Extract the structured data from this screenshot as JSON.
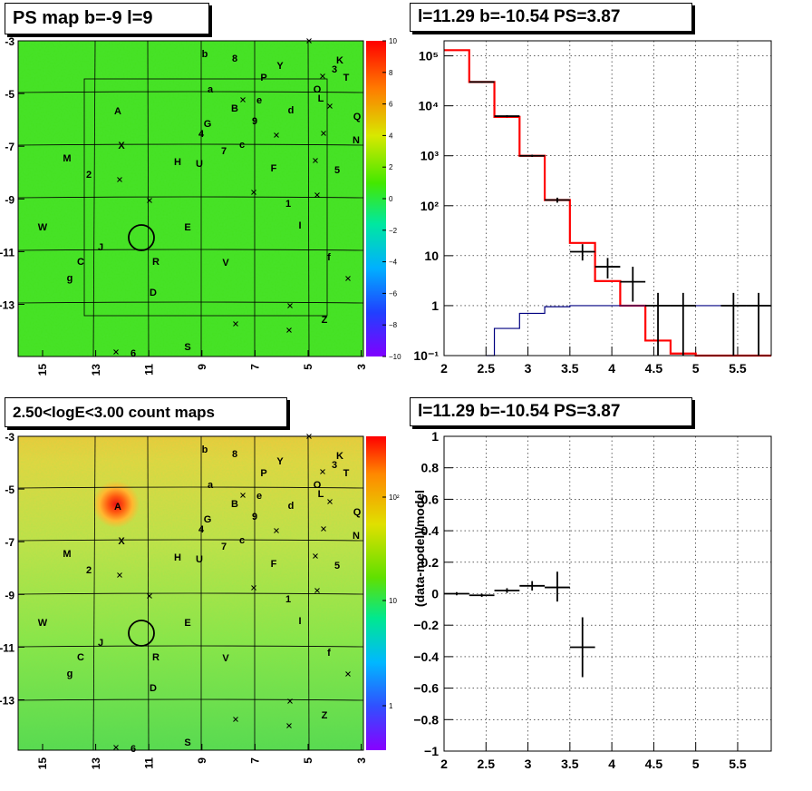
{
  "panels": {
    "top_left_title": "PS map b=-9 l=9",
    "top_right_title": "l=11.29 b=-10.54 PS=3.87",
    "bottom_left_title": "2.50<logE<3.00 count maps",
    "bottom_right_title": "l=11.29 b=-10.54 PS=3.87"
  },
  "maps": {
    "y_ticks": [
      "-3",
      "-5",
      "-7",
      "-9",
      "-11",
      "-13"
    ],
    "x_ticks": [
      "15",
      "13",
      "11",
      "9",
      "7",
      "5",
      "3"
    ],
    "ps_colorbar_ticks": [
      "10",
      "8",
      "6",
      "4",
      "2",
      "0",
      "−2",
      "−4",
      "−6",
      "−8",
      "−10"
    ],
    "count_colorbar_ticks": [
      "10²",
      "10",
      "1"
    ],
    "source_labels": [
      "b",
      "8",
      "Y",
      "K",
      "3",
      "T",
      "P",
      "O",
      "L",
      "a",
      "e",
      "B",
      "d",
      "A",
      "Q",
      "G",
      "9",
      "4",
      "N",
      "c",
      "7",
      "X",
      "M",
      "H",
      "U",
      "F",
      "5",
      "2",
      "1",
      "W",
      "E",
      "I",
      "J",
      "C",
      "R",
      "V",
      "f",
      "g",
      "D",
      "Z",
      "6",
      "S"
    ]
  },
  "chart_data": [
    {
      "type": "line",
      "panel": "top-right",
      "title": "l=11.29 b=-10.54 PS=3.87",
      "xlim": [
        2,
        5.9
      ],
      "ylim": [
        0.1,
        200000
      ],
      "y_scale": "log",
      "grid": true,
      "x_ticks": [
        "2",
        "2.5",
        "3",
        "3.5",
        "4",
        "4.5",
        "5",
        "5.5"
      ],
      "y_ticks": [
        "10⁻¹",
        "1",
        "10",
        "10²",
        "10³",
        "10⁴",
        "10⁵"
      ],
      "series": [
        {
          "color": "#ff0000",
          "style": "histogram",
          "bin_edges": [
            2.0,
            2.3,
            2.6,
            2.9,
            3.2,
            3.5,
            3.8,
            4.1,
            4.4,
            4.7,
            5.0,
            5.3,
            5.6,
            5.9
          ],
          "values": [
            130000,
            30000,
            6000,
            1000,
            130,
            18,
            3.1,
            1.0,
            0.2,
            0.11,
            0.1,
            0.1,
            0.1
          ]
        },
        {
          "color": "#000080",
          "style": "histogram",
          "bin_edges": [
            2.5,
            2.6,
            2.9,
            3.2,
            3.5,
            3.8,
            4.1,
            4.4,
            4.7,
            5.0,
            5.3,
            5.6,
            5.9
          ],
          "values": [
            0.1,
            0.35,
            0.7,
            0.95,
            1.0,
            1.0,
            1.0,
            1.0,
            1.0,
            1.0,
            1.0,
            1.0
          ]
        },
        {
          "color": "#000000",
          "style": "errorbars",
          "points": [
            {
              "x": 2.45,
              "y": 30000,
              "xerr": 0.15,
              "ylo": 29000,
              "yhi": 31000
            },
            {
              "x": 2.75,
              "y": 6200,
              "xerr": 0.15,
              "ylo": 5900,
              "yhi": 6500
            },
            {
              "x": 3.05,
              "y": 1000,
              "xerr": 0.15,
              "ylo": 950,
              "yhi": 1050
            },
            {
              "x": 3.35,
              "y": 130,
              "xerr": 0.15,
              "ylo": 115,
              "yhi": 145
            },
            {
              "x": 3.65,
              "y": 12,
              "xerr": 0.15,
              "ylo": 8,
              "yhi": 17
            },
            {
              "x": 3.95,
              "y": 6,
              "xerr": 0.15,
              "ylo": 3.5,
              "yhi": 9
            },
            {
              "x": 4.25,
              "y": 3,
              "xerr": 0.15,
              "ylo": 1.2,
              "yhi": 6
            },
            {
              "x": 4.55,
              "y": 1,
              "xerr": 0.15,
              "ylo": 0.1,
              "yhi": 1.8
            },
            {
              "x": 4.85,
              "y": 1,
              "xerr": 0.15,
              "ylo": 0.1,
              "yhi": 1.8
            },
            {
              "x": 5.45,
              "y": 1,
              "xerr": 0.15,
              "ylo": 0.1,
              "yhi": 1.8
            },
            {
              "x": 5.75,
              "y": 1,
              "xerr": 0.15,
              "ylo": 0.1,
              "yhi": 1.8
            }
          ]
        }
      ]
    },
    {
      "type": "scatter",
      "panel": "bottom-right",
      "title": "l=11.29 b=-10.54 PS=3.87",
      "ylabel": "(data-model)/model",
      "xlim": [
        2,
        5.9
      ],
      "ylim": [
        -1,
        1
      ],
      "grid": true,
      "x_ticks": [
        "2",
        "2.5",
        "3",
        "3.5",
        "4",
        "4.5",
        "5",
        "5.5"
      ],
      "y_ticks": [
        "1",
        "0.8",
        "0.6",
        "0.4",
        "0.2",
        "0",
        "−0.2",
        "−0.4",
        "−0.6",
        "−0.8",
        "−1"
      ],
      "series": [
        {
          "color": "#000000",
          "style": "errorbars",
          "points": [
            {
              "x": 2.15,
              "y": 0.0,
              "xerr": 0.15,
              "ylo": -0.01,
              "yhi": 0.01
            },
            {
              "x": 2.45,
              "y": -0.01,
              "xerr": 0.15,
              "ylo": -0.02,
              "yhi": 0.0
            },
            {
              "x": 2.75,
              "y": 0.02,
              "xerr": 0.15,
              "ylo": 0.005,
              "yhi": 0.035
            },
            {
              "x": 3.05,
              "y": 0.05,
              "xerr": 0.15,
              "ylo": 0.02,
              "yhi": 0.08
            },
            {
              "x": 3.35,
              "y": 0.04,
              "xerr": 0.15,
              "ylo": -0.05,
              "yhi": 0.14
            },
            {
              "x": 3.65,
              "y": -0.34,
              "xerr": 0.15,
              "ylo": -0.53,
              "yhi": -0.15
            }
          ]
        }
      ]
    }
  ]
}
